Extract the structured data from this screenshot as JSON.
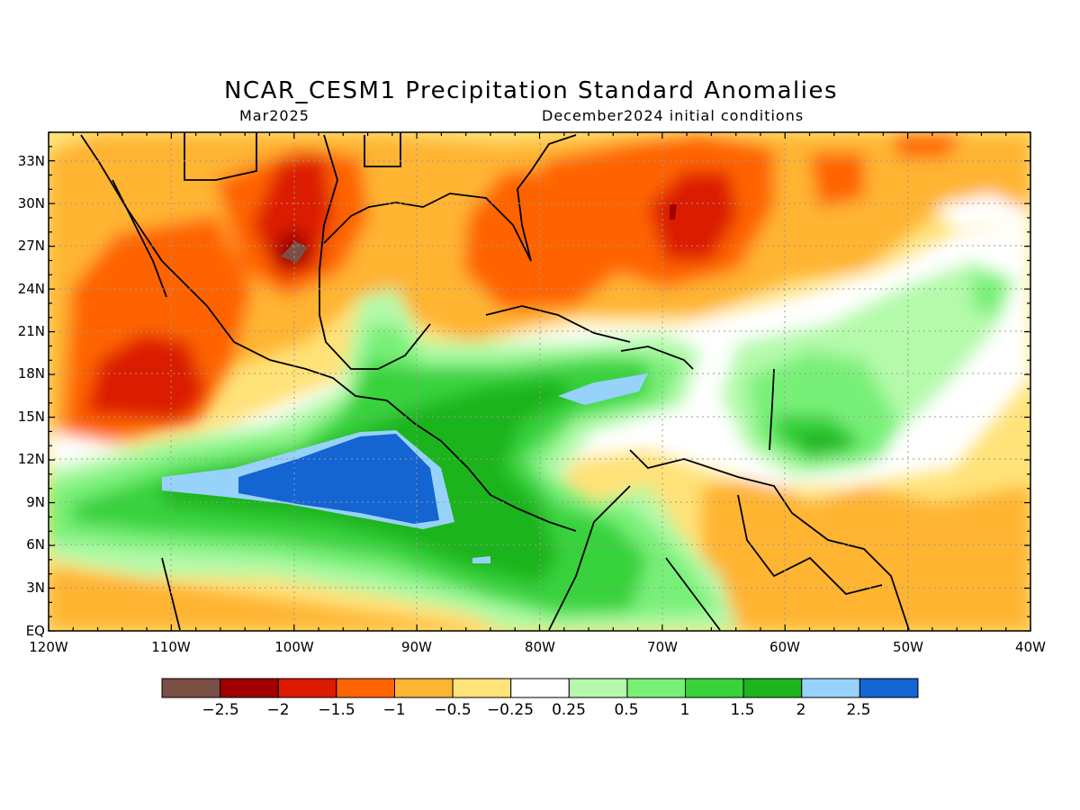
{
  "title": "NCAR_CESM1 Precipitation Standard Anomalies",
  "valid_month": "Mar2025",
  "init_conditions": "December2024 initial conditions",
  "lat_labels": [
    "33N",
    "30N",
    "27N",
    "24N",
    "21N",
    "18N",
    "15N",
    "12N",
    "9N",
    "6N",
    "3N",
    "EQ"
  ],
  "lon_labels": [
    "120W",
    "110W",
    "100W",
    "90W",
    "80W",
    "70W",
    "60W",
    "50W",
    "40W"
  ],
  "colorbar": {
    "colors": [
      "#7a5046",
      "#a00000",
      "#dc1a00",
      "#ff6400",
      "#ffb432",
      "#ffe278",
      "#ffffff",
      "#b4faaa",
      "#78f078",
      "#37d23c",
      "#1eb41e",
      "#96d2fa",
      "#1464d2"
    ],
    "labels": [
      "−2.5",
      "−2",
      "−1.5",
      "−1",
      "−0.5",
      "−0.25",
      "0.25",
      "0.5",
      "1",
      "1.5",
      "2",
      "2.5"
    ]
  }
}
